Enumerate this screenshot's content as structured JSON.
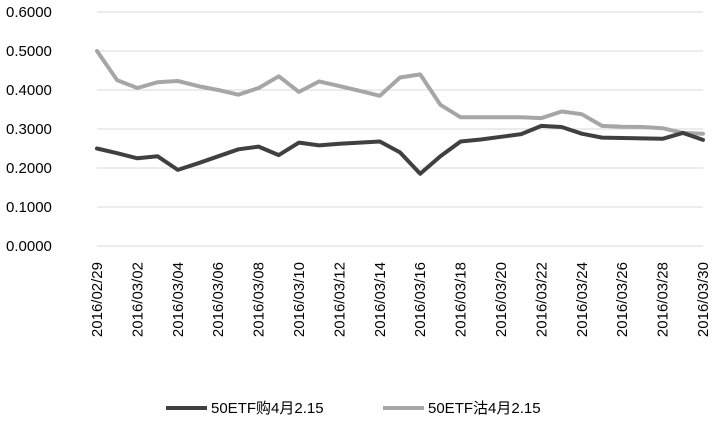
{
  "chart_data": {
    "type": "line",
    "title": "",
    "xlabel": "",
    "ylabel": "",
    "ylim": [
      0,
      0.6
    ],
    "yticks": [
      "0.0000",
      "0.1000",
      "0.2000",
      "0.3000",
      "0.4000",
      "0.5000",
      "0.6000"
    ],
    "grid": "horizontal",
    "legend_position": "bottom",
    "x": [
      "2016/02/29",
      "2016/03/01",
      "2016/03/02",
      "2016/03/03",
      "2016/03/04",
      "2016/03/05",
      "2016/03/06",
      "2016/03/07",
      "2016/03/08",
      "2016/03/09",
      "2016/03/10",
      "2016/03/11",
      "2016/03/12",
      "2016/03/13",
      "2016/03/14",
      "2016/03/15",
      "2016/03/16",
      "2016/03/17",
      "2016/03/18",
      "2016/03/19",
      "2016/03/20",
      "2016/03/21",
      "2016/03/22",
      "2016/03/23",
      "2016/03/24",
      "2016/03/25",
      "2016/03/26",
      "2016/03/27",
      "2016/03/28",
      "2016/03/29",
      "2016/03/30"
    ],
    "xtick_labels": [
      "2016/02/29",
      "2016/03/02",
      "2016/03/04",
      "2016/03/06",
      "2016/03/08",
      "2016/03/10",
      "2016/03/12",
      "2016/03/14",
      "2016/03/16",
      "2016/03/18",
      "2016/03/20",
      "2016/03/22",
      "2016/03/24",
      "2016/03/26",
      "2016/03/28",
      "2016/03/30"
    ],
    "series": [
      {
        "name": "50ETF购4月2.15",
        "color": "#404040",
        "values": [
          0.25,
          0.238,
          0.225,
          0.23,
          0.195,
          0.212,
          0.23,
          0.248,
          0.255,
          0.233,
          0.265,
          0.258,
          0.262,
          0.265,
          0.268,
          0.24,
          0.185,
          0.23,
          0.268,
          0.273,
          0.28,
          0.287,
          0.308,
          0.305,
          0.288,
          0.278,
          0.277,
          0.276,
          0.275,
          0.29,
          0.272
        ]
      },
      {
        "name": "50ETF沽4月2.15",
        "color": "#a6a6a6",
        "values": [
          0.5,
          0.425,
          0.405,
          0.42,
          0.423,
          0.41,
          0.4,
          0.388,
          0.405,
          0.435,
          0.395,
          0.422,
          0.41,
          0.398,
          0.385,
          0.432,
          0.44,
          0.362,
          0.33,
          0.33,
          0.33,
          0.33,
          0.328,
          0.345,
          0.338,
          0.308,
          0.306,
          0.305,
          0.302,
          0.29,
          0.288
        ]
      }
    ]
  }
}
